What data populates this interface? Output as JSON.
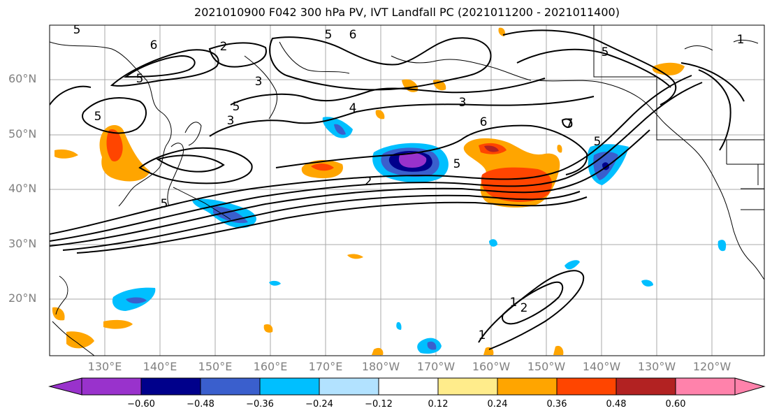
{
  "title": "2021010900 F042 300 hPa PV, IVT Landfall PC (2021011200 - 2021011400)",
  "lat_labels": [
    "60°N",
    "50°N",
    "40°N",
    "30°N",
    "20°N"
  ],
  "lon_labels": [
    "130°E",
    "140°E",
    "150°E",
    "160°E",
    "170°E",
    "180°W",
    "170°W",
    "160°W",
    "150°W",
    "140°W",
    "130°W",
    "120°W"
  ],
  "colorbar": {
    "ticks": [
      "−0.60",
      "−0.48",
      "−0.36",
      "−0.24",
      "−0.12",
      "0.12",
      "0.24",
      "0.36",
      "0.48",
      "0.60"
    ],
    "colors": [
      "#9932CC",
      "#00008B",
      "#3A5FCD",
      "#00BFFF",
      "#B2E2FF",
      "#FFFFFF",
      "#FFEC8B",
      "#FFA500",
      "#FF4500",
      "#B22222",
      "#FF82AB"
    ]
  },
  "contour_labels": [
    "6",
    "5",
    "2",
    "6",
    "5",
    "3",
    "5",
    "3",
    "4",
    "3",
    "6",
    "5",
    "5",
    "2",
    "5",
    "1",
    "1",
    "2",
    "1",
    "7",
    "5",
    "5",
    "5"
  ]
}
